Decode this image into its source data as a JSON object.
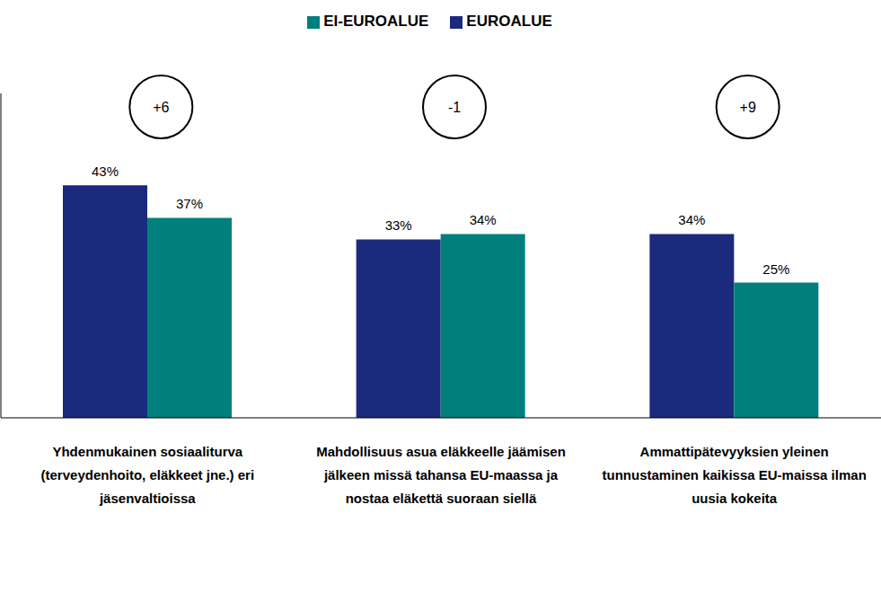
{
  "chart_data": {
    "type": "bar",
    "categories": [
      "Yhdenmukainen sosiaaliturva (terveydenhoito, eläkkeet jne.) eri jäsenvaltioissa",
      "Mahdollisuus asua eläkkeelle jäämisen jälkeen missä tahansa EU-maassa ja nostaa eläkettä suoraan siellä",
      "Ammattipätevyyksien yleinen tunnustaminen kaikissa EU-maissa ilman uusia kokeita"
    ],
    "series": [
      {
        "name": "EUROALUE",
        "color": "#1b2a7d",
        "values": [
          43,
          33,
          34
        ],
        "value_labels": [
          "43%",
          "33%",
          "34%"
        ]
      },
      {
        "name": "EI-EUROALUE",
        "color": "#00807c",
        "values": [
          37,
          34,
          25
        ],
        "value_labels": [
          "37%",
          "34%",
          "25%"
        ]
      }
    ],
    "annotations": [
      "+6",
      "-1",
      "+9"
    ],
    "ylim": [
      0,
      60
    ],
    "yticks": [],
    "data_labels": true,
    "tick_labels": "x",
    "legend": "top",
    "grid": false
  }
}
